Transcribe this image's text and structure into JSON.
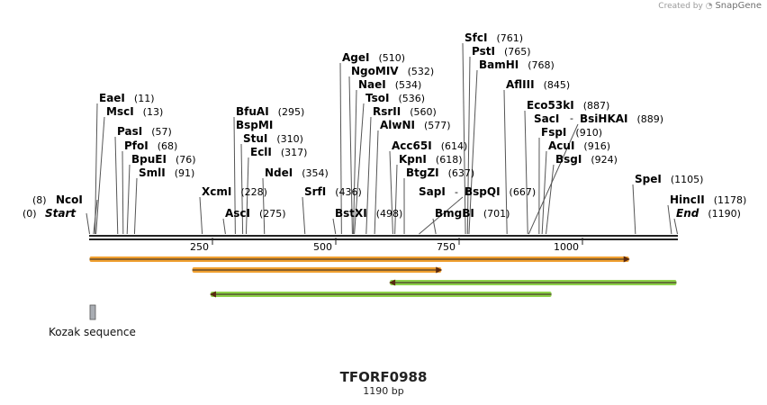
{
  "credit": {
    "created_by": "Created by",
    "brand": "SnapGene"
  },
  "sequence": {
    "name": "TFORF0988",
    "length_label": "1190 bp",
    "length": 1190
  },
  "ruler": {
    "ticks": [
      "250",
      "500",
      "750",
      "1000"
    ]
  },
  "sites": [
    {
      "name": "Start",
      "pos": "(0)",
      "italic": true,
      "bp": 0
    },
    {
      "name": "NcoI",
      "pos": "(8)",
      "bp": 8
    },
    {
      "name": "EaeI",
      "pos": "(11)",
      "bp": 11
    },
    {
      "name": "MscI",
      "pos": "(13)",
      "bp": 13
    },
    {
      "name": "PasI",
      "pos": "(57)",
      "bp": 57
    },
    {
      "name": "PfoI",
      "pos": "(68)",
      "bp": 68
    },
    {
      "name": "BpuEI",
      "pos": "(76)",
      "bp": 76
    },
    {
      "name": "SmlI",
      "pos": "(91)",
      "bp": 91
    },
    {
      "name": "XcmI",
      "pos": "(228)",
      "bp": 228
    },
    {
      "name": "AscI",
      "pos": "(275)",
      "bp": 275
    },
    {
      "name": "BfuAI",
      "pos": "(295)",
      "bp": 295
    },
    {
      "name": "BspMI",
      "pos": "",
      "bp": 295
    },
    {
      "name": "StuI",
      "pos": "(310)",
      "bp": 310
    },
    {
      "name": "EclI",
      "pos": "(317)",
      "bp": 317
    },
    {
      "name": "NdeI",
      "pos": "(354)",
      "bp": 354
    },
    {
      "name": "SrfI",
      "pos": "(436)",
      "bp": 436
    },
    {
      "name": "BstXI",
      "pos": "(498)",
      "bp": 498
    },
    {
      "name": "AgeI",
      "pos": "(510)",
      "bp": 510
    },
    {
      "name": "NgoMIV",
      "pos": "(532)",
      "bp": 532
    },
    {
      "name": "NaeI",
      "pos": "(534)",
      "bp": 534
    },
    {
      "name": "TsoI",
      "pos": "(536)",
      "bp": 536
    },
    {
      "name": "RsrII",
      "pos": "(560)",
      "bp": 560
    },
    {
      "name": "AlwNI",
      "pos": "(577)",
      "bp": 577
    },
    {
      "name": "Acc65I",
      "pos": "(614)",
      "bp": 614
    },
    {
      "name": "KpnI",
      "pos": "(618)",
      "bp": 618
    },
    {
      "name": "BtgZI",
      "pos": "(637)",
      "bp": 637
    },
    {
      "name": "SapI",
      "pos": "",
      "bp": 667
    },
    {
      "name": "BspQI",
      "pos": "(667)",
      "bp": 667
    },
    {
      "name": "BmgBI",
      "pos": "(701)",
      "bp": 701
    },
    {
      "name": "SfcI",
      "pos": "(761)",
      "bp": 761
    },
    {
      "name": "PstI",
      "pos": "(765)",
      "bp": 765
    },
    {
      "name": "BamHI",
      "pos": "(768)",
      "bp": 768
    },
    {
      "name": "AflIII",
      "pos": "(845)",
      "bp": 845
    },
    {
      "name": "Eco53kI",
      "pos": "(887)",
      "bp": 887
    },
    {
      "name": "SacI",
      "pos": "",
      "bp": 889
    },
    {
      "name": "BsiHKAI",
      "pos": "(889)",
      "bp": 889
    },
    {
      "name": "FspI",
      "pos": "(910)",
      "bp": 910
    },
    {
      "name": "AcuI",
      "pos": "(916)",
      "bp": 916
    },
    {
      "name": "BsgI",
      "pos": "(924)",
      "bp": 924
    },
    {
      "name": "SpeI",
      "pos": "(1105)",
      "bp": 1105
    },
    {
      "name": "HincII",
      "pos": "(1178)",
      "bp": 1178
    },
    {
      "name": "End",
      "pos": "(1190)",
      "italic": true,
      "bp": 1190
    }
  ],
  "features": [
    {
      "name": "orf-forward-full",
      "from_bp": 0,
      "to_bp": 1092,
      "direction": "forward",
      "color": "#f0a030"
    },
    {
      "name": "orf-forward-inner",
      "from_bp": 208,
      "to_bp": 712,
      "direction": "forward",
      "color": "#f0a030"
    },
    {
      "name": "orf-reverse-right",
      "from_bp": 608,
      "to_bp": 1188,
      "direction": "reverse",
      "color": "#8ed24a"
    },
    {
      "name": "orf-reverse-left",
      "from_bp": 245,
      "to_bp": 935,
      "direction": "reverse",
      "color": "#8ed24a"
    }
  ],
  "misc_feature": {
    "label": "Kozak sequence",
    "color": "#a9adb3"
  }
}
